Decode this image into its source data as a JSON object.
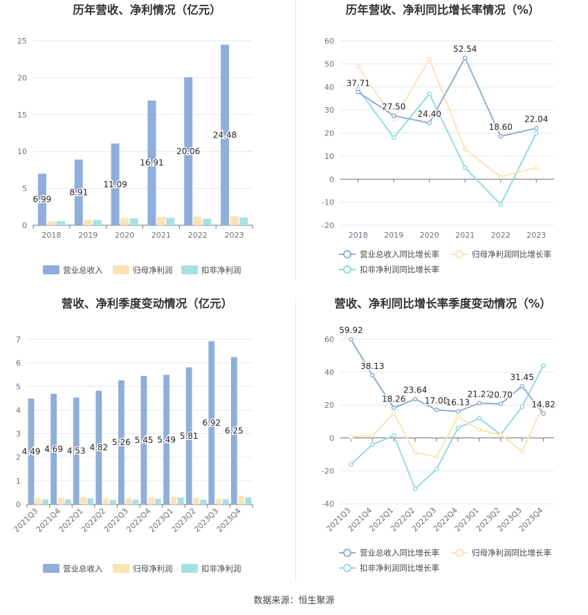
{
  "source_text": "数据来源：恒生聚源",
  "colors": {
    "revenue": "#8eaedb",
    "net_profit": "#fde3b3",
    "deducted_profit": "#a6e0e3",
    "revenue_line": "#8eaedb",
    "net_profit_line": "#fde3b3",
    "deducted_profit_line": "#8fdbde",
    "grid": "#e3e6ee",
    "axis": "#6e7079"
  },
  "chart_data": [
    {
      "type": "bar",
      "title": "历年营收、净利情况（亿元）",
      "categories": [
        "2018",
        "2019",
        "2020",
        "2021",
        "2022",
        "2023"
      ],
      "ylim": [
        0,
        25
      ],
      "yticks": [
        0,
        5,
        10,
        15,
        20,
        25
      ],
      "series": [
        {
          "name": "营业总收入",
          "values": [
            6.99,
            8.91,
            11.09,
            16.91,
            20.06,
            24.48
          ],
          "labels": [
            "6.99",
            "8.91",
            "11.09",
            "16.91",
            "20.06",
            "24.48"
          ]
        },
        {
          "name": "归母净利润",
          "values": [
            0.55,
            0.68,
            1.0,
            1.1,
            1.15,
            1.2
          ]
        },
        {
          "name": "扣非净利润",
          "values": [
            0.58,
            0.7,
            0.95,
            1.0,
            0.9,
            1.05
          ]
        }
      ],
      "legend": "bottom",
      "grid": true
    },
    {
      "type": "line",
      "title": "历年营收、净利同比增长率情况（%）",
      "categories": [
        "2018",
        "2019",
        "2020",
        "2021",
        "2022",
        "2023"
      ],
      "ylim": [
        -20,
        60
      ],
      "yticks": [
        -20,
        -10,
        0,
        10,
        20,
        30,
        40,
        50,
        60
      ],
      "series": [
        {
          "name": "营业总收入同比增长率",
          "values": [
            37.71,
            27.5,
            24.4,
            52.54,
            18.6,
            22.04
          ],
          "labels": [
            "37.71",
            "27.50",
            "24.40",
            "52.54",
            "18.60",
            "22.04"
          ]
        },
        {
          "name": "归母净利润同比增长率",
          "values": [
            49,
            26,
            52,
            13,
            1,
            5
          ]
        },
        {
          "name": "扣非净利润同比增长率",
          "values": [
            39,
            18,
            37,
            5,
            -11,
            20
          ]
        }
      ],
      "legend": "bottom",
      "grid": true
    },
    {
      "type": "bar",
      "title": "营收、净利季度变动情况（亿元）",
      "categories": [
        "2021Q3",
        "2021Q4",
        "2022Q1",
        "2022Q2",
        "2022Q3",
        "2022Q4",
        "2023Q1",
        "2023Q2",
        "2023Q3",
        "2023Q4"
      ],
      "ylim": [
        0,
        7
      ],
      "yticks": [
        0,
        1,
        2,
        3,
        4,
        5,
        6,
        7
      ],
      "series": [
        {
          "name": "营业总收入",
          "values": [
            4.49,
            4.69,
            4.53,
            4.82,
            5.26,
            5.45,
            5.49,
            5.81,
            6.92,
            6.25
          ],
          "labels": [
            "4.49",
            "4.69",
            "4.53",
            "4.82",
            "5.26",
            "5.45",
            "5.49",
            "5.81",
            "6.92",
            "6.25"
          ]
        },
        {
          "name": "归母净利润",
          "values": [
            0.28,
            0.27,
            0.32,
            0.25,
            0.27,
            0.3,
            0.32,
            0.28,
            0.24,
            0.36
          ]
        },
        {
          "name": "扣非净利润",
          "values": [
            0.22,
            0.22,
            0.26,
            0.19,
            0.2,
            0.23,
            0.3,
            0.2,
            0.22,
            0.3
          ]
        }
      ],
      "legend": "bottom",
      "grid": true
    },
    {
      "type": "line",
      "title": "营收、净利同比增长率季度变动情况（%）",
      "categories": [
        "2021Q3",
        "2021Q4",
        "2022Q1",
        "2022Q2",
        "2022Q3",
        "2022Q4",
        "2023Q1",
        "2023Q2",
        "2023Q3",
        "2023Q4"
      ],
      "ylim": [
        -40,
        60
      ],
      "yticks": [
        -40,
        -20,
        0,
        20,
        40,
        60
      ],
      "series": [
        {
          "name": "营业总收入同比增长率",
          "values": [
            59.92,
            38.13,
            18.26,
            23.64,
            17.08,
            16.13,
            21.21,
            20.7,
            31.45,
            14.82
          ],
          "labels": [
            "59.92",
            "38.13",
            "18.26",
            "23.64",
            "17.08",
            "16.13",
            "21.21",
            "20.70",
            "31.45",
            "14.82"
          ]
        },
        {
          "name": "归母净利润同比增长率",
          "values": [
            0.5,
            1.5,
            15,
            -9,
            -11.5,
            13,
            5,
            2,
            -8,
            20
          ]
        },
        {
          "name": "扣非净利润同比增长率",
          "values": [
            -16,
            -4,
            1.5,
            -31,
            -19,
            6,
            12,
            2,
            19,
            44
          ]
        }
      ],
      "legend": "bottom",
      "grid": true
    }
  ]
}
